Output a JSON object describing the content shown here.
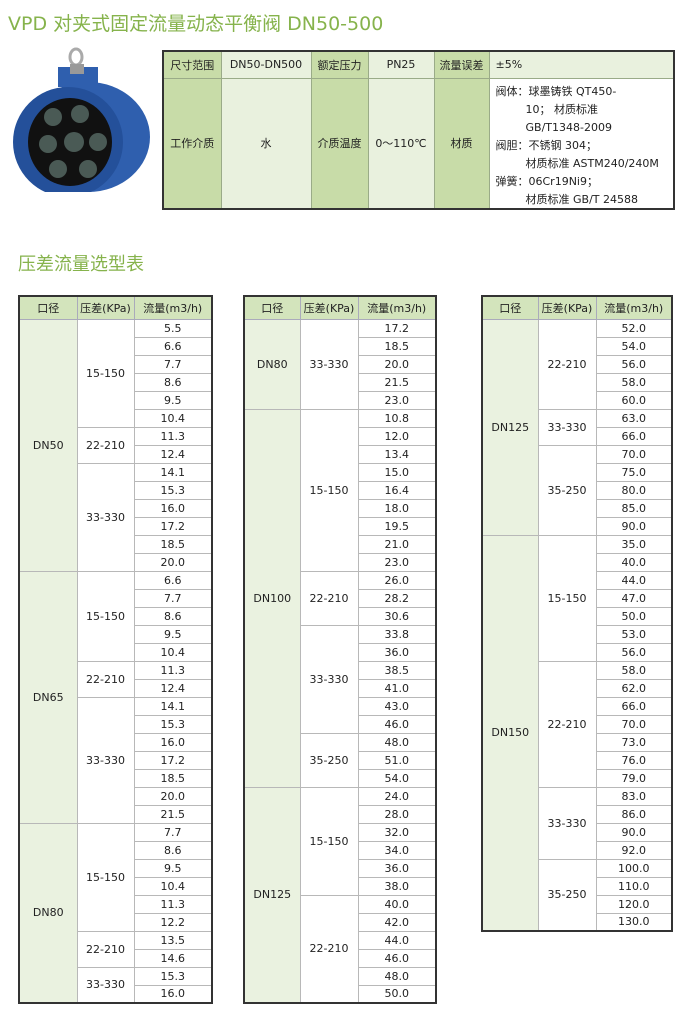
{
  "title": "VPD 对夹式固定流量动态平衡阀 DN50-500",
  "section_title": "压差流量选型表",
  "colors": {
    "accent": "#86b34c",
    "header": "#d3e4bc",
    "label_cell": "#c8dca8",
    "value_cell": "#e9f1de",
    "valve_body": "#2d5cab"
  },
  "spec": {
    "size_label": "尺寸范围",
    "size": "DN50-DN500",
    "pressure_label": "额定压力",
    "pressure": "PN25",
    "error_label": "流量误差",
    "error": "±5%",
    "medium_label": "工作介质",
    "medium": "水",
    "temp_label": "介质温度",
    "temp": "0～110℃",
    "material_label": "材质",
    "material_lines": [
      "阀体：球墨铸铁 QT450-",
      "10； 材质标准",
      "GB/T1348-2009",
      "阀胆：不锈钢 304；",
      "材质标准 ASTM240/240M",
      "弹簧：06Cr19Ni9；",
      "材质标准 GB/T 24588"
    ]
  },
  "headers": [
    "口径",
    "压差(KPa)",
    "流量(m3/h)"
  ],
  "tables": [
    [
      {
        "dn": "DN50",
        "groups": [
          {
            "kpa": "15-150",
            "flows": [
              "5.5",
              "6.6",
              "7.7",
              "8.6",
              "9.5",
              "10.4"
            ]
          },
          {
            "kpa": "22-210",
            "flows": [
              "11.3",
              "12.4"
            ]
          },
          {
            "kpa": "33-330",
            "flows": [
              "14.1",
              "15.3",
              "16.0",
              "17.2",
              "18.5",
              "20.0"
            ]
          }
        ]
      },
      {
        "dn": "DN65",
        "groups": [
          {
            "kpa": "15-150",
            "flows": [
              "6.6",
              "7.7",
              "8.6",
              "9.5",
              "10.4"
            ]
          },
          {
            "kpa": "22-210",
            "flows": [
              "11.3",
              "12.4"
            ]
          },
          {
            "kpa": "33-330",
            "flows": [
              "14.1",
              "15.3",
              "16.0",
              "17.2",
              "18.5",
              "20.0",
              "21.5"
            ]
          }
        ]
      },
      {
        "dn": "DN80",
        "groups": [
          {
            "kpa": "15-150",
            "flows": [
              "7.7",
              "8.6",
              "9.5",
              "10.4",
              "11.3",
              "12.2"
            ]
          },
          {
            "kpa": "22-210",
            "flows": [
              "13.5",
              "14.6"
            ]
          },
          {
            "kpa": "33-330",
            "flows": [
              "15.3",
              "16.0"
            ]
          }
        ]
      }
    ],
    [
      {
        "dn": "DN80",
        "groups": [
          {
            "kpa": "33-330",
            "flows": [
              "17.2",
              "18.5",
              "20.0",
              "21.5",
              "23.0"
            ]
          }
        ]
      },
      {
        "dn": "DN100",
        "groups": [
          {
            "kpa": "15-150",
            "flows": [
              "10.8",
              "12.0",
              "13.4",
              "15.0",
              "16.4",
              "18.0",
              "19.5",
              "21.0",
              "23.0"
            ]
          },
          {
            "kpa": "22-210",
            "flows": [
              "26.0",
              "28.2",
              "30.6"
            ]
          },
          {
            "kpa": "33-330",
            "flows": [
              "33.8",
              "36.0",
              "38.5",
              "41.0",
              "43.0",
              "46.0"
            ]
          },
          {
            "kpa": "35-250",
            "flows": [
              "48.0",
              "51.0",
              "54.0"
            ]
          }
        ]
      },
      {
        "dn": "DN125",
        "groups": [
          {
            "kpa": "15-150",
            "flows": [
              "24.0",
              "28.0",
              "32.0",
              "34.0",
              "36.0",
              "38.0"
            ]
          },
          {
            "kpa": "22-210",
            "flows": [
              "40.0",
              "42.0",
              "44.0",
              "46.0",
              "48.0",
              "50.0"
            ]
          }
        ]
      }
    ],
    [
      {
        "dn": "DN125",
        "groups": [
          {
            "kpa": "22-210",
            "flows": [
              "52.0",
              "54.0",
              "56.0",
              "58.0",
              "60.0"
            ]
          },
          {
            "kpa": "33-330",
            "flows": [
              "63.0",
              "66.0"
            ]
          },
          {
            "kpa": "35-250",
            "flows": [
              "70.0",
              "75.0",
              "80.0",
              "85.0",
              "90.0"
            ]
          }
        ]
      },
      {
        "dn": "DN150",
        "groups": [
          {
            "kpa": "15-150",
            "flows": [
              "35.0",
              "40.0",
              "44.0",
              "47.0",
              "50.0",
              "53.0",
              "56.0"
            ]
          },
          {
            "kpa": "22-210",
            "flows": [
              "58.0",
              "62.0",
              "66.0",
              "70.0",
              "73.0",
              "76.0",
              "79.0"
            ]
          },
          {
            "kpa": "33-330",
            "flows": [
              "83.0",
              "86.0",
              "90.0",
              "92.0"
            ]
          },
          {
            "kpa": "35-250",
            "flows": [
              "100.0",
              "110.0",
              "120.0",
              "130.0"
            ]
          }
        ]
      }
    ]
  ]
}
